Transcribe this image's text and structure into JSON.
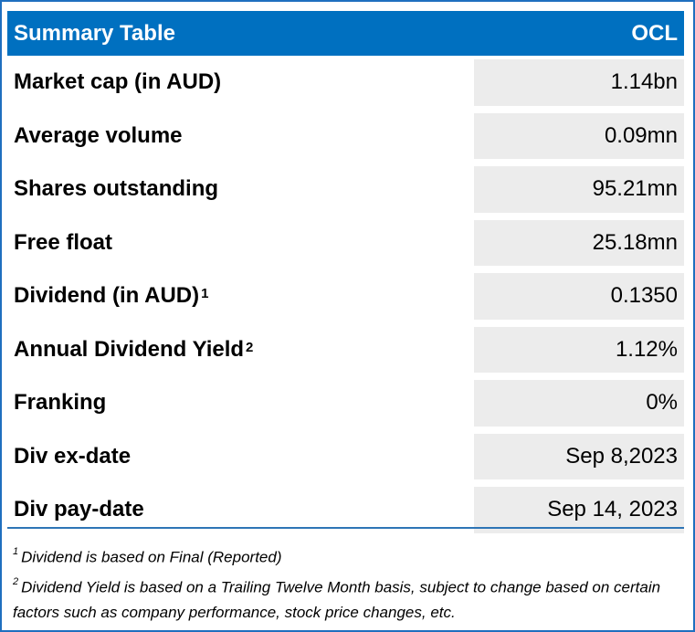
{
  "table": {
    "title": "Summary Table",
    "ticker": "OCL",
    "rows": [
      {
        "label": "Market cap (in AUD)",
        "sup": "",
        "value": "1.14bn"
      },
      {
        "label": "Average volume",
        "sup": "",
        "value": "0.09mn"
      },
      {
        "label": "Shares outstanding",
        "sup": "",
        "value": "95.21mn"
      },
      {
        "label": "Free float",
        "sup": "",
        "value": "25.18mn"
      },
      {
        "label": "Dividend (in AUD)",
        "sup": "1",
        "value": "0.1350"
      },
      {
        "label": "Annual Dividend Yield",
        "sup": "2",
        "value": "1.12%"
      },
      {
        "label": "Franking",
        "sup": "",
        "value": "0%"
      },
      {
        "label": "Div ex-date",
        "sup": "",
        "value": "Sep 8,2023"
      },
      {
        "label": "Div pay-date",
        "sup": "",
        "value": "Sep 14, 2023"
      }
    ]
  },
  "footnotes": [
    {
      "mark": "1",
      "text": "Dividend is based on Final (Reported)"
    },
    {
      "mark": "2",
      "text": "Dividend Yield is based on a Trailing Twelve Month basis, subject to change based on certain factors such as company performance, stock price changes, etc."
    }
  ],
  "colors": {
    "header_bg": "#0070c0",
    "border": "#1f6fbf",
    "value_bg": "#ececec"
  }
}
